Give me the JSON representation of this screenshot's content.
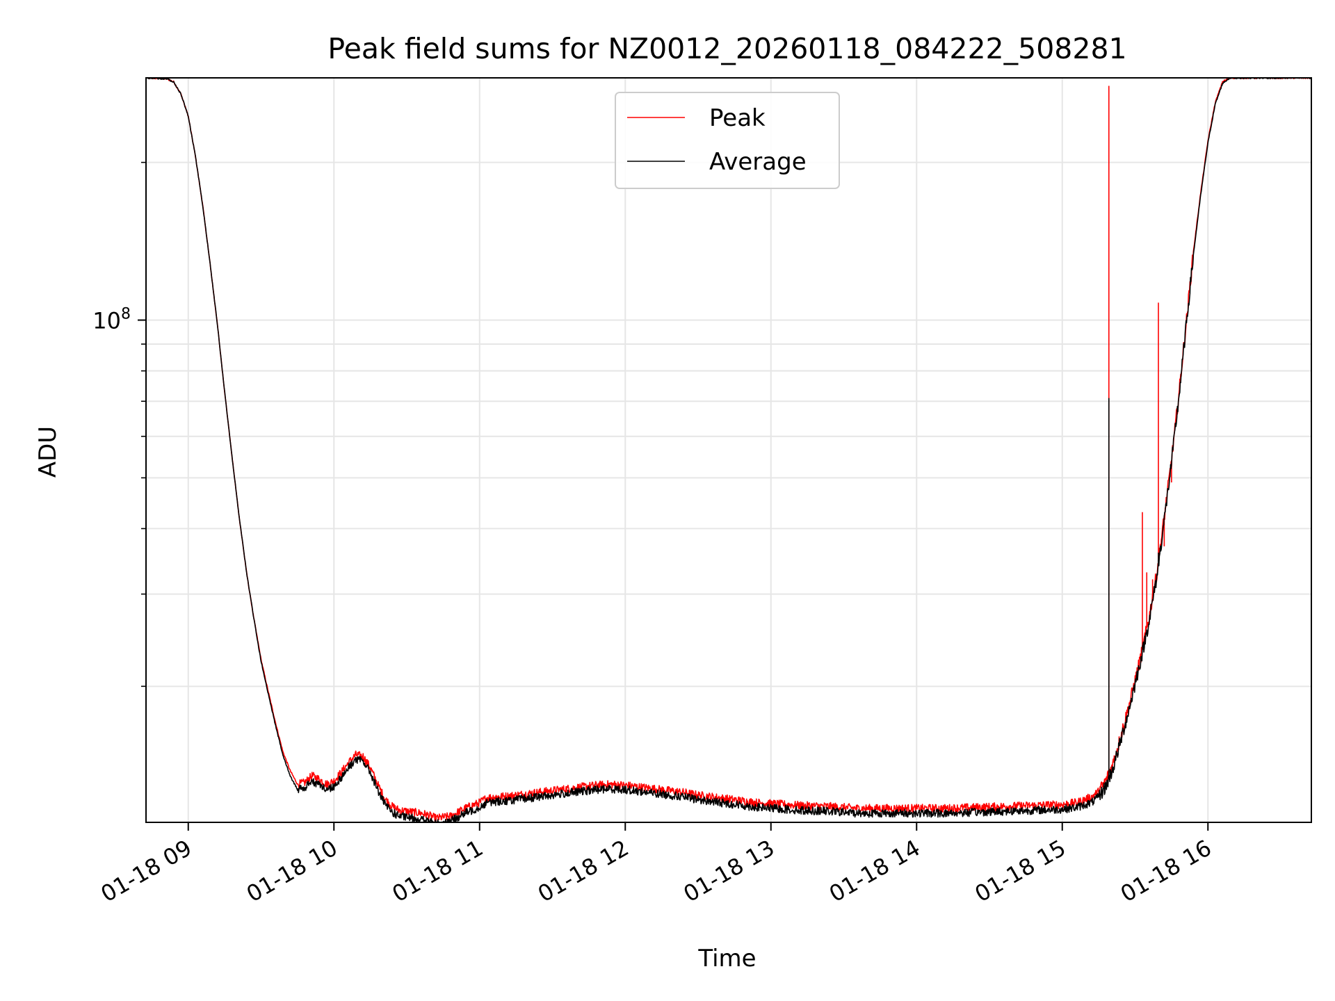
{
  "chart_data": {
    "type": "line",
    "title": "Peak field sums for NZ0012_20260118_084222_508281",
    "xlabel": "Time",
    "ylabel": "ADU",
    "yscale": "log",
    "ylim": [
      11000000,
      290000000
    ],
    "xlim_hours": [
      8.71,
      16.71
    ],
    "x_ticks": [
      {
        "hour": 9,
        "label": "01-18 09"
      },
      {
        "hour": 10,
        "label": "01-18 10"
      },
      {
        "hour": 11,
        "label": "01-18 11"
      },
      {
        "hour": 12,
        "label": "01-18 12"
      },
      {
        "hour": 13,
        "label": "01-18 13"
      },
      {
        "hour": 14,
        "label": "01-18 14"
      },
      {
        "hour": 15,
        "label": "01-18 15"
      },
      {
        "hour": 16,
        "label": "01-18 16"
      }
    ],
    "y_major_ticks": [
      {
        "value": 100000000,
        "base": "10",
        "exp": "8"
      }
    ],
    "y_minor_ticks": [
      20000000,
      30000000,
      40000000,
      50000000,
      60000000,
      70000000,
      80000000,
      90000000,
      200000000
    ],
    "grid": true,
    "legend_position": "upper-center",
    "series": [
      {
        "name": "Peak",
        "color": "#ff0000",
        "x_hours": [
          8.71,
          8.85,
          8.9,
          8.95,
          9.0,
          9.05,
          9.1,
          9.15,
          9.2,
          9.25,
          9.3,
          9.35,
          9.4,
          9.45,
          9.5,
          9.55,
          9.6,
          9.65,
          9.7,
          9.75,
          9.8,
          9.85,
          9.9,
          9.95,
          10.0,
          10.05,
          10.1,
          10.15,
          10.2,
          10.25,
          10.3,
          10.35,
          10.4,
          10.45,
          10.5,
          10.55,
          10.6,
          10.65,
          10.7,
          10.8,
          10.9,
          11.0,
          11.05,
          11.1,
          11.2,
          11.3,
          11.4,
          11.5,
          11.6,
          11.7,
          11.8,
          11.9,
          12.0,
          12.1,
          12.2,
          12.3,
          12.4,
          12.5,
          12.6,
          12.7,
          12.8,
          12.9,
          13.0,
          13.2,
          13.4,
          13.6,
          13.8,
          14.0,
          14.2,
          14.4,
          14.6,
          14.8,
          15.0,
          15.1,
          15.2,
          15.25,
          15.3,
          15.35,
          15.4,
          15.45,
          15.5,
          15.55,
          15.6,
          15.65,
          15.7,
          15.75,
          15.8,
          15.85,
          15.9,
          15.95,
          16.0,
          16.05,
          16.1,
          16.15,
          16.2,
          16.25,
          16.3,
          16.35,
          16.45,
          16.71
        ],
        "values": [
          290000000,
          289000000,
          285000000,
          270000000,
          245000000,
          205000000,
          165000000,
          128000000,
          98000000,
          73000000,
          55000000,
          42000000,
          33000000,
          27000000,
          22500000,
          19500000,
          17000000,
          15000000,
          13800000,
          13000000,
          13100000,
          13500000,
          13300000,
          13000000,
          13200000,
          13700000,
          14300000,
          14800000,
          14700000,
          14000000,
          13000000,
          12200000,
          11800000,
          11600000,
          11550000,
          11500000,
          11450000,
          11350000,
          11200000,
          11300000,
          11700000,
          12000000,
          12250000,
          12300000,
          12350000,
          12450000,
          12550000,
          12650000,
          12750000,
          12850000,
          12950000,
          13000000,
          12950000,
          12850000,
          12750000,
          12650000,
          12550000,
          12400000,
          12300000,
          12200000,
          12100000,
          12000000,
          11950000,
          11850000,
          11800000,
          11700000,
          11700000,
          11700000,
          11700000,
          11750000,
          11800000,
          11850000,
          11900000,
          12000000,
          12300000,
          12600000,
          13200000,
          14300000,
          16000000,
          18000000,
          20500000,
          23500000,
          27500000,
          33000000,
          42000000,
          54000000,
          72000000,
          98000000,
          135000000,
          175000000,
          220000000,
          260000000,
          285000000,
          290000000,
          290000000,
          290000000,
          290000000,
          290000000,
          290000000,
          290000000
        ],
        "spikes": [
          {
            "hour": 15.32,
            "value": 280000000
          },
          {
            "hour": 15.55,
            "value": 43000000
          },
          {
            "hour": 15.58,
            "value": 33000000
          },
          {
            "hour": 15.62,
            "value": 32000000
          },
          {
            "hour": 15.66,
            "value": 108000000
          },
          {
            "hour": 15.7,
            "value": 37000000
          },
          {
            "hour": 15.75,
            "value": 49000000
          }
        ]
      },
      {
        "name": "Average",
        "color": "#000000",
        "x_hours": [
          8.71,
          8.85,
          8.9,
          8.95,
          9.0,
          9.05,
          9.1,
          9.15,
          9.2,
          9.25,
          9.3,
          9.35,
          9.4,
          9.45,
          9.5,
          9.55,
          9.6,
          9.65,
          9.7,
          9.75,
          9.8,
          9.85,
          9.9,
          9.95,
          10.0,
          10.05,
          10.1,
          10.15,
          10.2,
          10.25,
          10.3,
          10.35,
          10.4,
          10.45,
          10.5,
          10.55,
          10.6,
          10.65,
          10.7,
          10.8,
          10.9,
          11.0,
          11.05,
          11.1,
          11.2,
          11.3,
          11.4,
          11.5,
          11.6,
          11.7,
          11.8,
          11.9,
          12.0,
          12.1,
          12.2,
          12.3,
          12.4,
          12.5,
          12.6,
          12.7,
          12.8,
          12.9,
          13.0,
          13.2,
          13.4,
          13.6,
          13.8,
          14.0,
          14.2,
          14.4,
          14.6,
          14.8,
          15.0,
          15.1,
          15.2,
          15.25,
          15.3,
          15.35,
          15.4,
          15.45,
          15.5,
          15.55,
          15.6,
          15.65,
          15.7,
          15.75,
          15.8,
          15.85,
          15.9,
          15.95,
          16.0,
          16.05,
          16.1,
          16.15,
          16.2,
          16.25,
          16.3,
          16.35,
          16.45,
          16.71
        ],
        "values": [
          290000000,
          289000000,
          285000000,
          270000000,
          245000000,
          205000000,
          165000000,
          128000000,
          98000000,
          73000000,
          55000000,
          42000000,
          33000000,
          27000000,
          22300000,
          19300000,
          16800000,
          14800000,
          13500000,
          12700000,
          12800000,
          13200000,
          13000000,
          12700000,
          12900000,
          13400000,
          14000000,
          14500000,
          14400000,
          13700000,
          12700000,
          11900000,
          11500000,
          11300000,
          11250000,
          11200000,
          11150000,
          11050000,
          10950000,
          11050000,
          11450000,
          11750000,
          12000000,
          12050000,
          12100000,
          12200000,
          12300000,
          12400000,
          12500000,
          12600000,
          12700000,
          12750000,
          12700000,
          12600000,
          12500000,
          12400000,
          12300000,
          12150000,
          12050000,
          11950000,
          11850000,
          11750000,
          11700000,
          11600000,
          11550000,
          11450000,
          11450000,
          11450000,
          11450000,
          11500000,
          11550000,
          11600000,
          11650000,
          11750000,
          12000000,
          12300000,
          12900000,
          14000000,
          15700000,
          17700000,
          20200000,
          23200000,
          27000000,
          32500000,
          41500000,
          53500000,
          71000000,
          97000000,
          133000000,
          173000000,
          218000000,
          258000000,
          283000000,
          290000000,
          290000000,
          290000000,
          290000000,
          290000000,
          290000000,
          290000000
        ],
        "spikes": [
          {
            "hour": 15.32,
            "value": 71000000
          },
          {
            "hour": 15.66,
            "value": 36000000
          }
        ]
      }
    ]
  }
}
